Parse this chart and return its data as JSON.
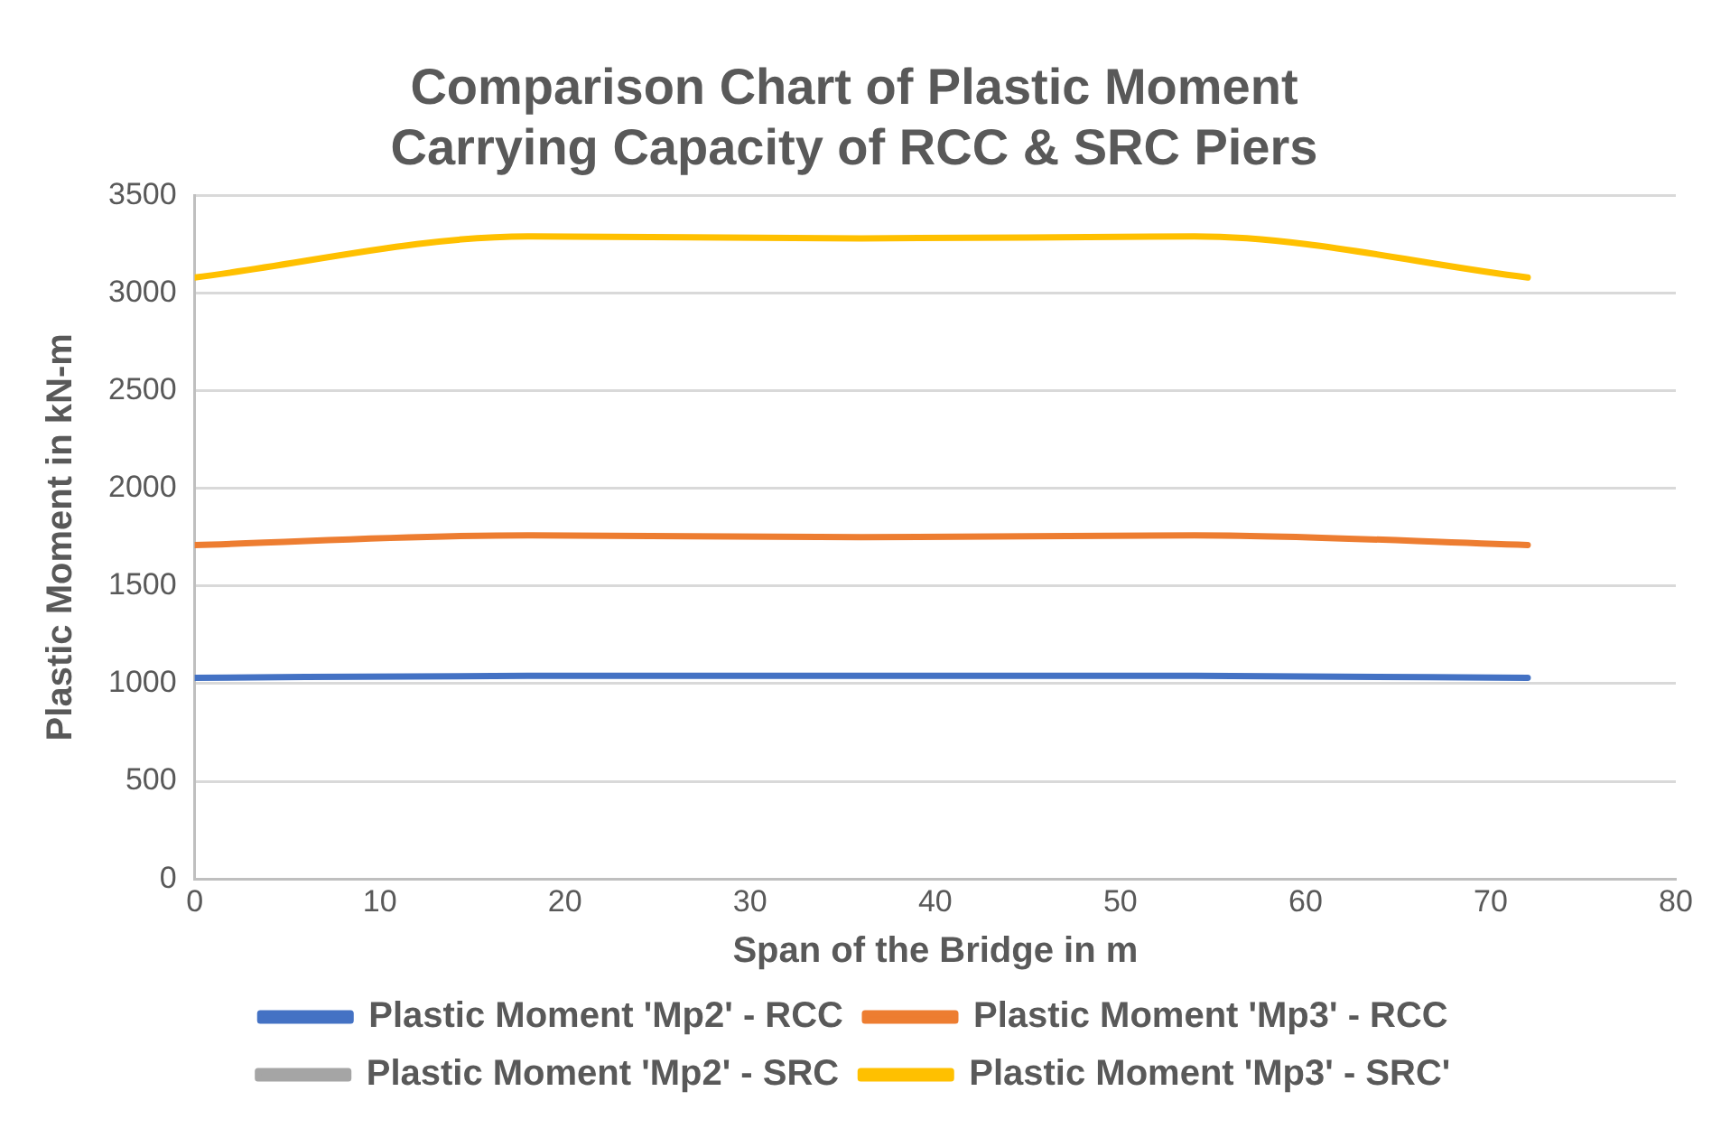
{
  "chart_data": {
    "type": "line",
    "title": "Comparison Chart of Plastic Moment Carrying Capacity of RCC & SRC Piers",
    "xlabel": "Span of the Bridge in m",
    "ylabel": "Plastic Moment in kN-m",
    "x": [
      0,
      18,
      36,
      54,
      72
    ],
    "series": [
      {
        "name": "Plastic Moment 'Mp2' - RCC",
        "color": "#4472c4",
        "values": [
          1030,
          1040,
          1040,
          1040,
          1030
        ]
      },
      {
        "name": "Plastic Moment 'Mp3' - RCC",
        "color": "#ed7d31",
        "values": [
          1710,
          1760,
          1750,
          1760,
          1710
        ]
      },
      {
        "name": "Plastic Moment 'Mp2' - SRC",
        "color": "#a5a5a5",
        "values": [
          null,
          null,
          null,
          null,
          null
        ]
      },
      {
        "name": "Plastic Moment 'Mp3' - SRC'",
        "color": "#ffc000",
        "values": [
          3080,
          3290,
          3280,
          3290,
          3080
        ]
      }
    ],
    "xlim": [
      0,
      80
    ],
    "xticks": [
      0,
      10,
      20,
      30,
      40,
      50,
      60,
      70,
      80
    ],
    "ylim": [
      0,
      3500
    ],
    "yticks": [
      0,
      500,
      1000,
      1500,
      2000,
      2500,
      3000,
      3500
    ],
    "grid": "y",
    "legend": "bottom",
    "marker": "none",
    "line_style": "solid"
  }
}
